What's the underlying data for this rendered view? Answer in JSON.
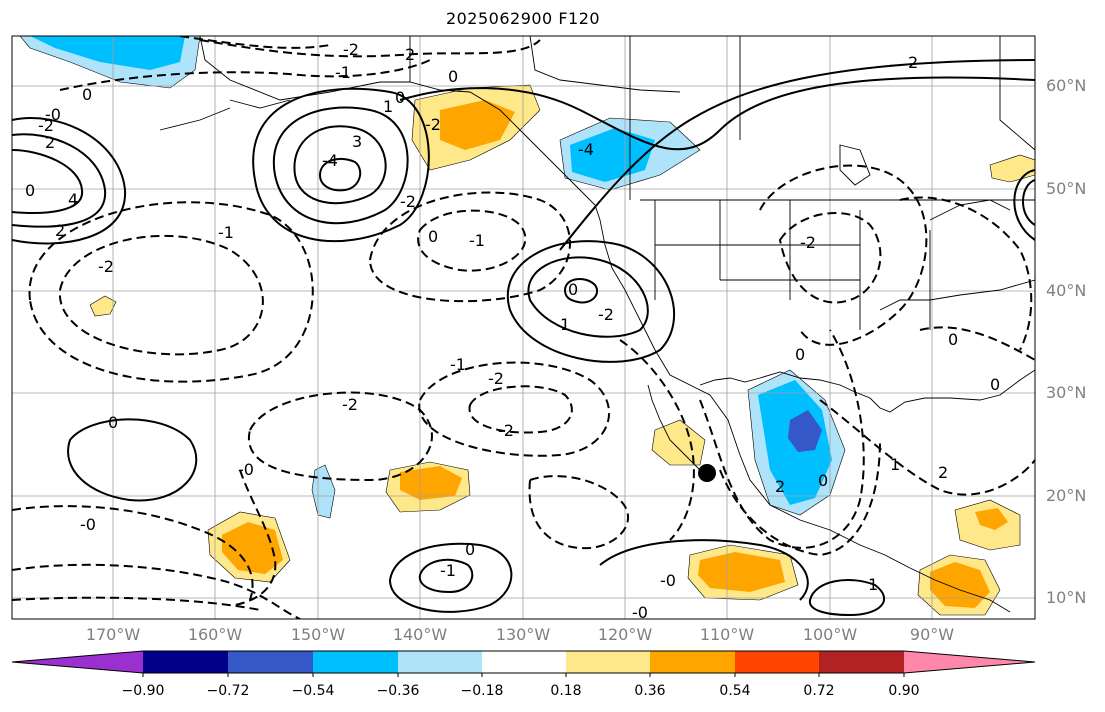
{
  "title": "2025062900 F120",
  "latitude_labels": [
    "60°N",
    "50°N",
    "40°N",
    "30°N",
    "20°N",
    "10°N"
  ],
  "longitude_labels": [
    "170°W",
    "160°W",
    "150°W",
    "140°W",
    "130°W",
    "120°W",
    "110°W",
    "100°W",
    "90°W"
  ],
  "colorbar": {
    "tick_labels": [
      "−0.90",
      "−0.72",
      "−0.54",
      "−0.36",
      "−0.18",
      "0.18",
      "0.36",
      "0.54",
      "0.72",
      "0.90"
    ],
    "colors": [
      "#9b30d0",
      "#00008b",
      "#3557c8",
      "#00bfff",
      "#aee3fa",
      "#ffffff",
      "#ffe88a",
      "#ffa500",
      "#ff4500",
      "#b22222",
      "#ff88aa"
    ]
  },
  "contour_labels": [
    "-2",
    "2",
    "-1",
    "0",
    "0",
    "1",
    "0",
    "-2",
    "3",
    "-4",
    "2",
    "-0",
    "-2",
    "-2",
    "-1",
    "2",
    "-4",
    "4",
    "2",
    "0",
    "-2",
    "-1",
    "0",
    "0",
    "-2",
    "-2",
    "0",
    "0",
    "1",
    "0",
    "0",
    "2",
    "-1",
    "-2",
    "2",
    "0",
    "-0",
    "-2",
    "1",
    "-0",
    "-1",
    "0",
    "-2",
    "-0",
    "1",
    "-0"
  ],
  "map": {
    "marker": "typhoon-position-dot",
    "coastline_color": "#000000",
    "gridline_color": "#a0a0a0"
  }
}
